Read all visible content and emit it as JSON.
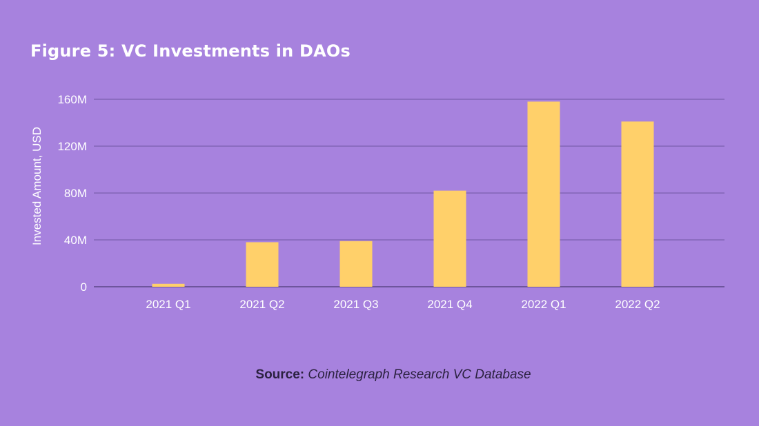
{
  "title": "Figure 5: VC Investments in DAOs",
  "source": {
    "prefix": "Source:",
    "text": "Cointelegraph Research VC Database"
  },
  "chart_data": {
    "type": "bar",
    "title": "Figure 5: VC Investments in DAOs",
    "xlabel": "",
    "ylabel": "Invested Amount, USD",
    "categories": [
      "2021 Q1",
      "2021 Q2",
      "2021 Q3",
      "2021 Q4",
      "2022 Q1",
      "2022 Q2"
    ],
    "values": [
      2500000,
      38000000,
      39000000,
      82000000,
      158000000,
      141000000
    ],
    "ylim": [
      0,
      160000000
    ],
    "yticks": [
      0,
      40000000,
      80000000,
      120000000,
      160000000
    ],
    "ytick_labels": [
      "0",
      "40M",
      "80M",
      "120M",
      "160M"
    ],
    "grid": true,
    "legend": "none",
    "colors": {
      "bar": "#ffd06a",
      "grid": "#6f55a3",
      "background": "#a782de",
      "text": "#ffffff"
    }
  }
}
